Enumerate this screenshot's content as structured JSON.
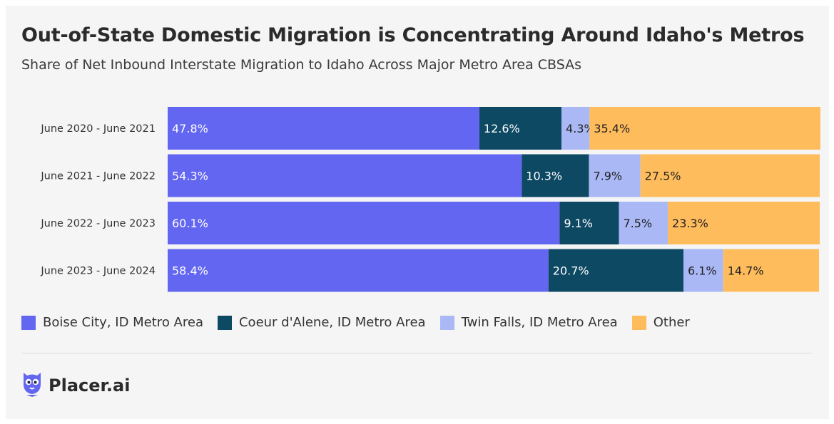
{
  "chart_data": {
    "type": "bar",
    "orientation": "horizontal",
    "stacked": true,
    "title": "Out-of-State Domestic Migration is Concentrating Around Idaho's Metros",
    "subtitle": "Share of Net Inbound Interstate Migration to Idaho Across Major Metro Area CBSAs",
    "categories": [
      "June 2020 - June 2021",
      "June 2021 - June 2022",
      "June 2022 - June 2023",
      "June 2023 - June 2024"
    ],
    "series": [
      {
        "name": "Boise City, ID Metro Area",
        "color": "#6366f1",
        "label_color": "#ffffff",
        "values": [
          47.8,
          54.3,
          60.1,
          58.4
        ],
        "labels": [
          "47.8%",
          "54.3%",
          "60.1%",
          "58.4%"
        ]
      },
      {
        "name": "Coeur d'Alene, ID Metro Area",
        "color": "#0d4963",
        "label_color": "#ffffff",
        "values": [
          12.6,
          10.3,
          9.1,
          20.7
        ],
        "labels": [
          "12.6%",
          "10.3%",
          "9.1%",
          "20.7%"
        ]
      },
      {
        "name": "Twin Falls, ID Metro Area",
        "color": "#aab8f5",
        "label_color": "#222222",
        "values": [
          4.3,
          7.9,
          7.5,
          6.1
        ],
        "labels": [
          "4.3%",
          "7.9%",
          "7.5%",
          "6.1%"
        ]
      },
      {
        "name": "Other",
        "color": "#ffbc5c",
        "label_color": "#222222",
        "values": [
          35.4,
          27.5,
          23.3,
          14.7
        ],
        "labels": [
          "35.4%",
          "27.5%",
          "23.3%",
          "14.7%"
        ]
      }
    ],
    "xlim": [
      0,
      100
    ],
    "grid": false,
    "legend_position": "bottom-left"
  },
  "brand": {
    "name": "Placer.ai",
    "icon": "owl-logo-icon",
    "icon_color": "#6366f1"
  },
  "background_color": "#f5f5f5"
}
